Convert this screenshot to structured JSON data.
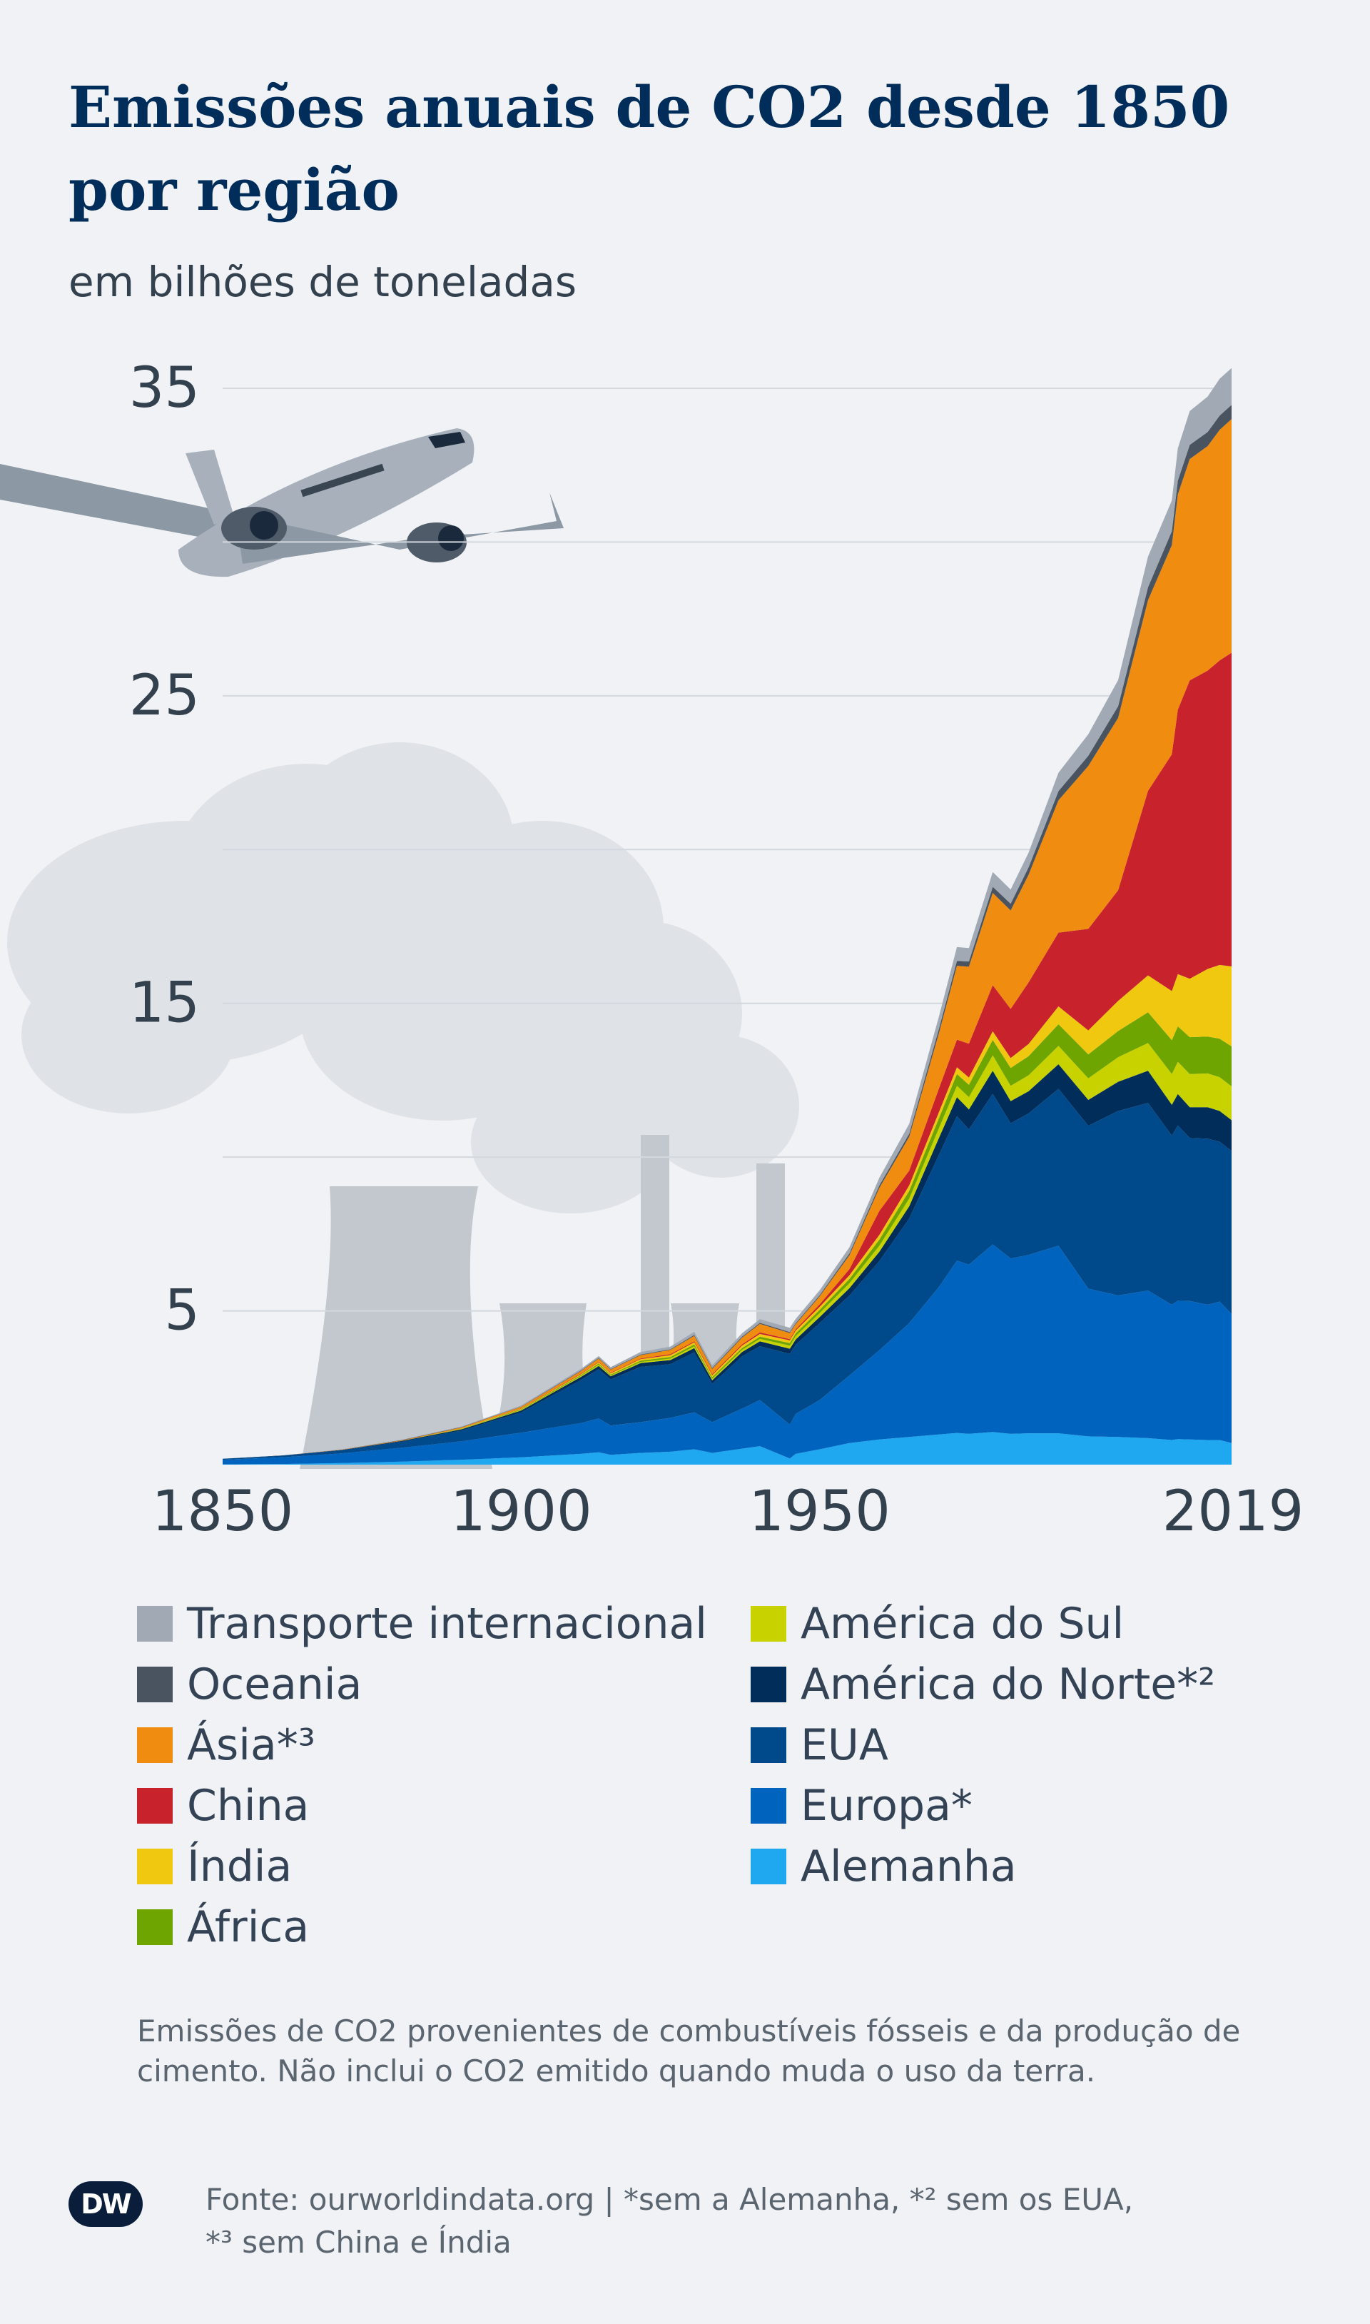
{
  "title": "Emissões anuais de CO2 desde 1850 por região",
  "subtitle": "em bilhões de toneladas",
  "note": "Emissões de CO2 provenientes de combustíveis fósseis e da produção de cimento. Não inclui o CO2 emitido quando muda o uso da terra.",
  "source_line1": "Fonte: ourworldindata.org | *sem a Alemanha, *² sem os EUA,",
  "source_line2": "*³ sem China e Índia",
  "logo": "DW",
  "chart_data": {
    "type": "area",
    "stacked": true,
    "x_ticks": [
      "1850",
      "1900",
      "1950",
      "2019"
    ],
    "y_ticks": [
      "5",
      "15",
      "25",
      "35"
    ],
    "ylim": [
      0,
      36
    ],
    "grid": true,
    "legend_position": "bottom",
    "x": [
      1850,
      1860,
      1870,
      1880,
      1890,
      1900,
      1910,
      1913,
      1915,
      1920,
      1925,
      1929,
      1932,
      1937,
      1940,
      1945,
      1946,
      1950,
      1955,
      1960,
      1965,
      1970,
      1973,
      1975,
      1979,
      1982,
      1985,
      1990,
      1995,
      2000,
      2005,
      2009,
      2010,
      2012,
      2015,
      2017,
      2019
    ],
    "series": [
      {
        "name": "Alemanha",
        "color": "#1fa7f0",
        "values": [
          0.01,
          0.02,
          0.05,
          0.1,
          0.16,
          0.24,
          0.35,
          0.4,
          0.32,
          0.38,
          0.42,
          0.5,
          0.38,
          0.52,
          0.6,
          0.2,
          0.35,
          0.5,
          0.7,
          0.82,
          0.9,
          0.98,
          1.03,
          1.0,
          1.06,
          1.0,
          1.02,
          1.02,
          0.92,
          0.9,
          0.86,
          0.8,
          0.83,
          0.82,
          0.8,
          0.8,
          0.7
        ]
      },
      {
        "name": "Europa*",
        "color": "#0064be",
        "values": [
          0.15,
          0.22,
          0.32,
          0.45,
          0.6,
          0.8,
          1.0,
          1.1,
          0.95,
          1.0,
          1.1,
          1.2,
          1.0,
          1.3,
          1.5,
          1.1,
          1.3,
          1.6,
          2.2,
          2.9,
          3.7,
          4.8,
          5.6,
          5.5,
          6.1,
          5.7,
          5.8,
          6.1,
          4.8,
          4.6,
          4.8,
          4.4,
          4.5,
          4.5,
          4.4,
          4.5,
          4.2
        ]
      },
      {
        "name": "EUA",
        "color": "#004a8c",
        "values": [
          0.03,
          0.05,
          0.1,
          0.2,
          0.35,
          0.66,
          1.4,
          1.6,
          1.5,
          1.8,
          1.75,
          1.95,
          1.25,
          1.7,
          1.75,
          2.3,
          2.25,
          2.5,
          2.6,
          2.9,
          3.4,
          4.3,
          4.7,
          4.4,
          4.9,
          4.4,
          4.6,
          5.1,
          5.3,
          6.0,
          6.1,
          5.5,
          5.7,
          5.3,
          5.4,
          5.2,
          5.3
        ]
      },
      {
        "name": "América do Norte*²",
        "color": "#002d5a",
        "values": [
          0.0,
          0.01,
          0.01,
          0.02,
          0.04,
          0.06,
          0.1,
          0.11,
          0.1,
          0.12,
          0.13,
          0.14,
          0.11,
          0.14,
          0.16,
          0.17,
          0.17,
          0.2,
          0.24,
          0.3,
          0.4,
          0.55,
          0.62,
          0.65,
          0.75,
          0.72,
          0.72,
          0.8,
          0.84,
          0.95,
          1.05,
          1.0,
          1.02,
          1.0,
          1.02,
          1.0,
          1.0
        ]
      },
      {
        "name": "América do Sul",
        "color": "#c8d200",
        "values": [
          0.0,
          0.0,
          0.0,
          0.0,
          0.01,
          0.02,
          0.03,
          0.04,
          0.03,
          0.04,
          0.05,
          0.06,
          0.05,
          0.07,
          0.08,
          0.1,
          0.11,
          0.13,
          0.16,
          0.2,
          0.25,
          0.32,
          0.37,
          0.4,
          0.5,
          0.5,
          0.52,
          0.6,
          0.7,
          0.8,
          0.9,
          1.0,
          1.05,
          1.08,
          1.1,
          1.1,
          1.1
        ]
      },
      {
        "name": "África",
        "color": "#6ea500",
        "values": [
          0.0,
          0.0,
          0.0,
          0.0,
          0.01,
          0.02,
          0.03,
          0.04,
          0.03,
          0.04,
          0.05,
          0.06,
          0.05,
          0.06,
          0.07,
          0.08,
          0.09,
          0.1,
          0.14,
          0.2,
          0.25,
          0.32,
          0.38,
          0.4,
          0.5,
          0.58,
          0.62,
          0.7,
          0.78,
          0.85,
          1.0,
          1.1,
          1.15,
          1.2,
          1.2,
          1.25,
          1.3
        ]
      },
      {
        "name": "Índia",
        "color": "#f0c80f",
        "values": [
          0.0,
          0.0,
          0.0,
          0.0,
          0.01,
          0.02,
          0.03,
          0.04,
          0.04,
          0.05,
          0.06,
          0.07,
          0.07,
          0.08,
          0.09,
          0.09,
          0.09,
          0.1,
          0.12,
          0.15,
          0.18,
          0.2,
          0.22,
          0.24,
          0.28,
          0.32,
          0.4,
          0.58,
          0.78,
          0.98,
          1.2,
          1.6,
          1.7,
          1.9,
          2.2,
          2.4,
          2.6
        ]
      },
      {
        "name": "China",
        "color": "#c8232d",
        "values": [
          0.0,
          0.0,
          0.0,
          0.0,
          0.0,
          0.01,
          0.02,
          0.02,
          0.02,
          0.02,
          0.03,
          0.03,
          0.03,
          0.04,
          0.05,
          0.04,
          0.04,
          0.08,
          0.2,
          0.78,
          0.48,
          0.77,
          0.9,
          1.1,
          1.5,
          1.6,
          2.0,
          2.4,
          3.3,
          3.6,
          6.0,
          7.7,
          8.6,
          9.7,
          9.7,
          9.9,
          10.2
        ]
      },
      {
        "name": "Ásia*³",
        "color": "#f08c0f",
        "values": [
          0.0,
          0.0,
          0.01,
          0.02,
          0.03,
          0.05,
          0.08,
          0.1,
          0.1,
          0.11,
          0.14,
          0.18,
          0.17,
          0.22,
          0.28,
          0.2,
          0.17,
          0.26,
          0.45,
          0.75,
          1.1,
          1.8,
          2.4,
          2.5,
          3.0,
          3.2,
          3.5,
          4.3,
          5.3,
          5.6,
          6.2,
          6.8,
          7.0,
          7.2,
          7.3,
          7.5,
          7.6
        ]
      },
      {
        "name": "Oceania",
        "color": "#4a5460",
        "values": [
          0.0,
          0.0,
          0.0,
          0.01,
          0.01,
          0.01,
          0.02,
          0.02,
          0.02,
          0.02,
          0.02,
          0.03,
          0.03,
          0.03,
          0.03,
          0.03,
          0.03,
          0.04,
          0.06,
          0.08,
          0.1,
          0.14,
          0.16,
          0.17,
          0.2,
          0.22,
          0.24,
          0.3,
          0.33,
          0.38,
          0.42,
          0.45,
          0.45,
          0.46,
          0.46,
          0.46,
          0.46
        ]
      },
      {
        "name": "Transporte internacional",
        "color": "#a0a9b4",
        "values": [
          0.0,
          0.0,
          0.01,
          0.01,
          0.02,
          0.03,
          0.05,
          0.06,
          0.06,
          0.08,
          0.09,
          0.1,
          0.09,
          0.11,
          0.12,
          0.14,
          0.14,
          0.16,
          0.2,
          0.25,
          0.32,
          0.4,
          0.45,
          0.44,
          0.48,
          0.46,
          0.48,
          0.6,
          0.7,
          0.85,
          1.0,
          1.0,
          1.05,
          1.1,
          1.15,
          1.2,
          1.2
        ]
      }
    ]
  }
}
